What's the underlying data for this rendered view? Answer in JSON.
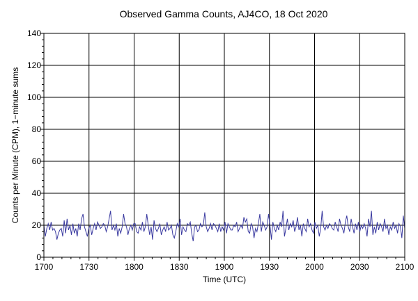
{
  "chart_data": {
    "type": "line",
    "title": "Observed Gamma Counts, AJ4CO, 18 Oct 2020",
    "xlabel": "Time (UTC)",
    "ylabel": "Counts per Minute (CPM), 1−minute sums",
    "x_tick_labels": [
      "1700",
      "1730",
      "1800",
      "1830",
      "1900",
      "1930",
      "2000",
      "2030",
      "2100"
    ],
    "y_tick_labels": [
      "0",
      "20",
      "40",
      "60",
      "80",
      "100",
      "120",
      "140"
    ],
    "x_range_minutes": [
      0,
      240
    ],
    "x_start_label": "1700",
    "ylim": [
      0,
      140
    ],
    "grid": true,
    "line_color": "#3a3aa0",
    "series": [
      {
        "values": [
          20,
          13,
          18,
          21,
          17,
          22,
          17,
          18,
          16,
          11,
          15,
          17,
          18,
          13,
          23,
          15,
          24,
          17,
          20,
          14,
          21,
          15,
          18,
          13,
          21,
          17,
          24,
          27,
          19,
          16,
          13,
          18,
          20,
          14,
          18,
          21,
          17,
          22,
          20,
          18,
          19,
          21,
          20,
          16,
          19,
          24,
          29,
          17,
          20,
          17,
          21,
          13,
          18,
          15,
          19,
          27,
          21,
          19,
          14,
          18,
          20,
          17,
          21,
          21,
          16,
          15,
          19,
          17,
          22,
          16,
          19,
          27,
          20,
          14,
          19,
          11,
          23,
          18,
          16,
          18,
          21,
          14,
          17,
          19,
          16,
          22,
          17,
          18,
          20,
          14,
          12,
          16,
          21,
          19,
          24,
          14,
          19,
          17,
          16,
          21,
          20,
          22,
          15,
          10,
          19,
          20,
          16,
          17,
          21,
          19,
          20,
          28,
          19,
          16,
          18,
          21,
          17,
          21,
          20,
          18,
          16,
          21,
          16,
          19,
          17,
          22,
          15,
          21,
          19,
          17,
          17,
          20,
          19,
          22,
          16,
          18,
          20,
          18,
          25,
          22,
          24,
          16,
          15,
          21,
          19,
          12,
          18,
          16,
          21,
          27,
          16,
          22,
          20,
          17,
          19,
          27,
          20,
          11,
          22,
          18,
          16,
          20,
          17,
          22,
          19,
          29,
          13,
          18,
          24,
          17,
          21,
          19,
          23,
          16,
          19,
          25,
          17,
          20,
          13,
          21,
          18,
          16,
          24,
          19,
          21,
          17,
          15,
          22,
          18,
          20,
          13,
          18,
          29,
          19,
          17,
          20,
          18,
          21,
          20,
          18,
          17,
          22,
          19,
          16,
          24,
          20,
          18,
          15,
          22,
          26,
          19,
          16,
          24,
          19,
          15,
          21,
          17,
          22,
          16,
          20,
          18,
          21,
          18,
          13,
          24,
          19,
          29,
          14,
          19,
          15,
          22,
          17,
          21,
          19,
          16,
          24,
          18,
          20,
          14,
          19,
          17,
          22,
          18,
          20,
          15,
          21,
          19,
          12,
          26,
          18
        ]
      }
    ]
  }
}
